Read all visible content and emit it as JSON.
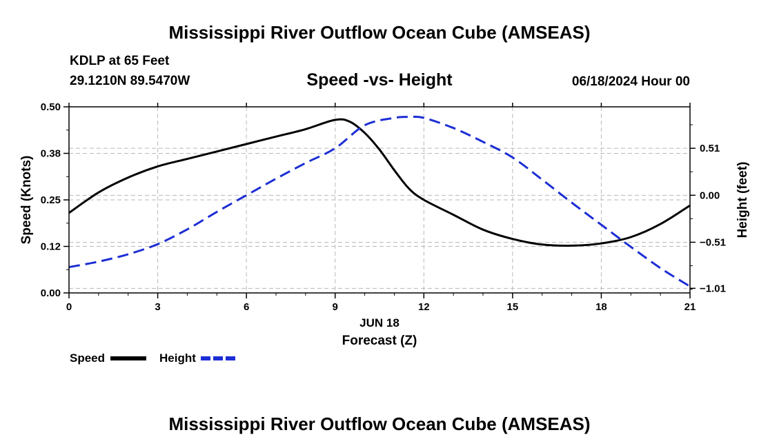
{
  "header": {
    "title": "Mississippi River Outflow Ocean Cube (AMSEAS)",
    "station": "KDLP at 65 Feet",
    "location": "29.1210N  89.5470W",
    "datetime": "06/18/2024 Hour 00"
  },
  "footer": {
    "title": "Mississippi River Outflow Ocean Cube (AMSEAS)"
  },
  "chart_data": {
    "type": "line",
    "title": "Speed -vs- Height",
    "xlabel": "Forecast (Z)",
    "date_label": "JUN 18",
    "ylabel": "Speed (Knots)",
    "y2label": "Height (feet)",
    "xlim": [
      0,
      21
    ],
    "ylim": [
      0,
      0.5
    ],
    "y2lim": [
      -1.06,
      0.96
    ],
    "x_ticks": [
      0,
      3,
      6,
      9,
      12,
      15,
      18,
      21
    ],
    "x_tick_labels": [
      "0",
      "3",
      "6",
      "9",
      "12",
      "15",
      "18",
      "21"
    ],
    "y_ticks": [
      0,
      0.125,
      0.25,
      0.375,
      0.5
    ],
    "y_tick_labels": [
      "0.00",
      "0.12",
      "0.25",
      "0.38",
      "0.50"
    ],
    "y2_ticks": [
      0.51,
      0.0,
      -0.51,
      -1.01
    ],
    "y2_tick_labels": [
      "0.51",
      "0.00",
      "−0.51",
      "−1.01"
    ],
    "grid": true,
    "legend_position": "bottom-left",
    "series": [
      {
        "name": "Speed",
        "axis": "left",
        "color": "#000000",
        "dash": "solid",
        "x": [
          0,
          1,
          2,
          3,
          4,
          5,
          6,
          7,
          8,
          9,
          9.5,
          10,
          10.5,
          11,
          11.5,
          12,
          13,
          14,
          15,
          16,
          17,
          18,
          19,
          20,
          21
        ],
        "values": [
          0.215,
          0.27,
          0.31,
          0.34,
          0.36,
          0.38,
          0.4,
          0.42,
          0.44,
          0.465,
          0.46,
          0.43,
          0.385,
          0.33,
          0.28,
          0.25,
          0.21,
          0.17,
          0.145,
          0.13,
          0.127,
          0.133,
          0.15,
          0.185,
          0.235
        ]
      },
      {
        "name": "Height",
        "axis": "right",
        "color": "#1c2ed4",
        "dash": "dashed",
        "x": [
          0,
          1,
          2,
          3,
          4,
          5,
          6,
          7,
          8,
          9,
          10,
          11,
          11.5,
          12,
          13,
          14,
          15,
          16,
          17,
          18,
          19,
          20,
          21
        ],
        "values": [
          -0.78,
          -0.72,
          -0.64,
          -0.53,
          -0.37,
          -0.18,
          0.0,
          0.18,
          0.35,
          0.51,
          0.76,
          0.84,
          0.85,
          0.84,
          0.73,
          0.58,
          0.41,
          0.17,
          -0.08,
          -0.32,
          -0.56,
          -0.79,
          -0.99
        ]
      }
    ]
  }
}
